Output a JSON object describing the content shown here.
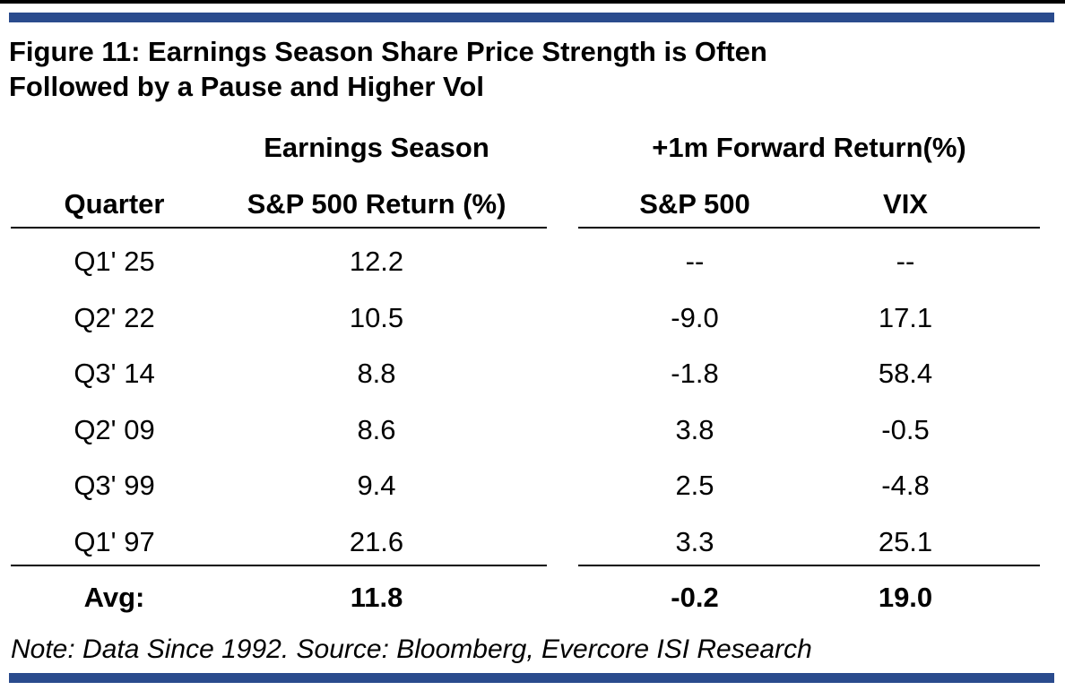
{
  "figure": {
    "title_line1": "Figure 11: Earnings Season Share Price Strength is Often",
    "title_line2": "Followed by a Pause and Higher Vol"
  },
  "header": {
    "group1": "Earnings Season",
    "group2": "+1m Forward Return(%)",
    "quarter": "Quarter",
    "sp_return": "S&P 500 Return (%)",
    "sp500": "S&P 500",
    "vix": "VIX"
  },
  "rows": [
    {
      "quarter": "Q1' 25",
      "earnings": "12.2",
      "sp500": "--",
      "vix": "--"
    },
    {
      "quarter": "Q2' 22",
      "earnings": "10.5",
      "sp500": "-9.0",
      "vix": "17.1"
    },
    {
      "quarter": "Q3' 14",
      "earnings": "8.8",
      "sp500": "-1.8",
      "vix": "58.4"
    },
    {
      "quarter": "Q2' 09",
      "earnings": "8.6",
      "sp500": "3.8",
      "vix": "-0.5"
    },
    {
      "quarter": "Q3' 99",
      "earnings": "9.4",
      "sp500": "2.5",
      "vix": "-4.8"
    },
    {
      "quarter": "Q1' 97",
      "earnings": "21.6",
      "sp500": "3.3",
      "vix": "25.1"
    }
  ],
  "average": {
    "label": "Avg:",
    "earnings": "11.8",
    "sp500": "-0.2",
    "vix": "19.0"
  },
  "note": "Note: Data Since 1992. Source: Bloomberg, Evercore ISI Research",
  "colors": {
    "accent_bar": "#2a4b8d"
  }
}
